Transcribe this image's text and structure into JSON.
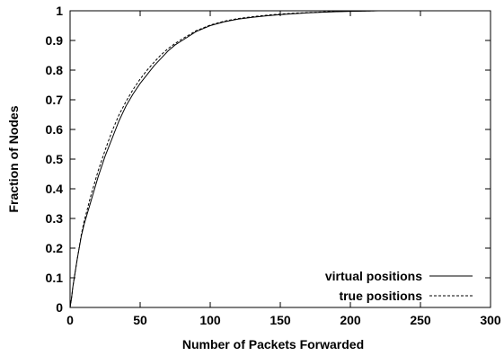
{
  "chart_data": {
    "type": "line",
    "xlabel": "Number of Packets Forwarded",
    "ylabel": "Fraction of Nodes",
    "xlim": [
      0,
      300
    ],
    "ylim": [
      0,
      1
    ],
    "x_ticks": [
      0,
      50,
      100,
      150,
      200,
      250,
      300
    ],
    "x_tick_labels": [
      "0",
      "50",
      "100",
      "150",
      "200",
      "250",
      "300"
    ],
    "y_ticks": [
      0,
      0.1,
      0.2,
      0.3,
      0.4,
      0.5,
      0.6,
      0.7,
      0.8,
      0.9,
      1
    ],
    "y_tick_labels": [
      "0",
      "0.1",
      "0.2",
      "0.3",
      "0.4",
      "0.5",
      "0.6",
      "0.7",
      "0.8",
      "0.9",
      "1"
    ],
    "grid": false,
    "legend_position": "bottom-right",
    "series": [
      {
        "name": "virtual positions",
        "line_style": "solid",
        "x": [
          0,
          1,
          2,
          3,
          5,
          8,
          10,
          15,
          20,
          25,
          30,
          35,
          40,
          45,
          50,
          55,
          60,
          65,
          70,
          75,
          80,
          90,
          100,
          110,
          120,
          130,
          140,
          150,
          160,
          170,
          180,
          190,
          200,
          210,
          220,
          250,
          300
        ],
        "y": [
          0,
          0.03,
          0.07,
          0.1,
          0.16,
          0.24,
          0.28,
          0.36,
          0.44,
          0.51,
          0.57,
          0.63,
          0.68,
          0.72,
          0.755,
          0.785,
          0.815,
          0.84,
          0.865,
          0.885,
          0.9,
          0.93,
          0.95,
          0.963,
          0.972,
          0.978,
          0.983,
          0.987,
          0.99,
          0.993,
          0.995,
          0.997,
          0.998,
          0.999,
          1.0,
          1.0,
          1.0
        ]
      },
      {
        "name": "true positions",
        "line_style": "dashed",
        "x": [
          0,
          1,
          2,
          3,
          5,
          8,
          10,
          15,
          20,
          25,
          30,
          35,
          40,
          45,
          50,
          55,
          60,
          65,
          70,
          75,
          80,
          90,
          100,
          110,
          120,
          130,
          140,
          150,
          160,
          170,
          180,
          190,
          200,
          210,
          220,
          250,
          300
        ],
        "y": [
          0,
          0.03,
          0.07,
          0.1,
          0.16,
          0.245,
          0.29,
          0.38,
          0.46,
          0.53,
          0.595,
          0.65,
          0.695,
          0.735,
          0.77,
          0.8,
          0.827,
          0.852,
          0.873,
          0.89,
          0.905,
          0.933,
          0.952,
          0.965,
          0.974,
          0.98,
          0.985,
          0.989,
          0.992,
          0.994,
          0.996,
          0.998,
          0.999,
          0.9995,
          1.0,
          1.0,
          1.0
        ]
      }
    ]
  }
}
